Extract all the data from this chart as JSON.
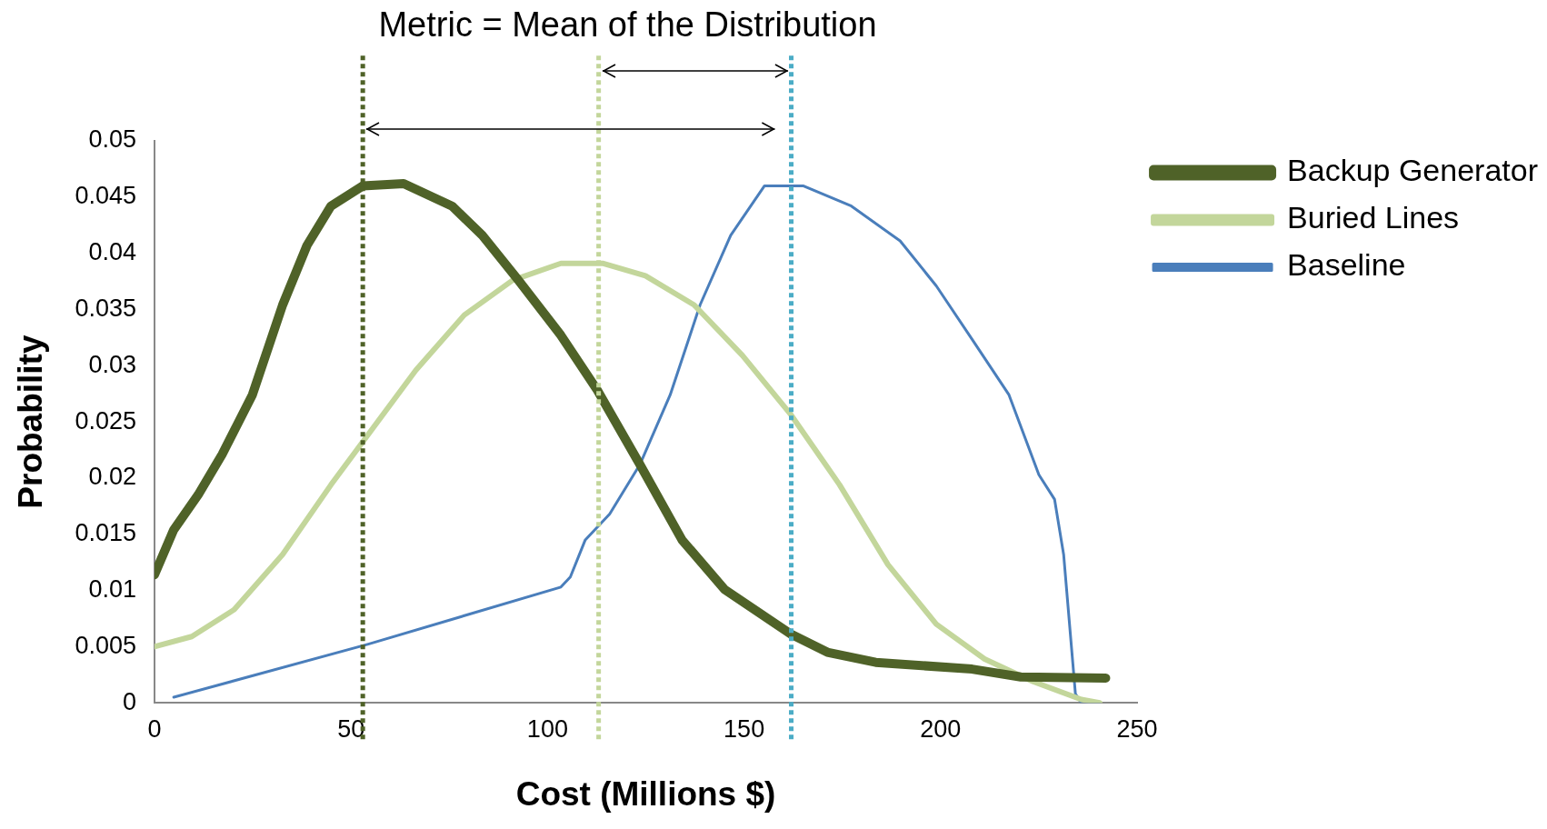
{
  "chart_data": {
    "type": "line",
    "title": "Metric = Mean of the Distribution",
    "xlabel": "Cost (Millions $)",
    "ylabel": "Probability",
    "series": [
      {
        "name": "Backup Generator",
        "color": "#4f6228",
        "x": [
          0,
          4.9,
          11.1,
          17.2,
          24.9,
          32.6,
          38.8,
          44.9,
          53,
          63.4,
          75.7,
          83.4,
          92.6,
          103.4,
          112.7,
          123.5,
          134.2,
          145,
          162,
          171.2,
          183.5,
          208,
          220.4,
          242
        ],
        "values": [
          0.0114,
          0.0154,
          0.0185,
          0.0221,
          0.0274,
          0.0354,
          0.0407,
          0.0442,
          0.046,
          0.0462,
          0.0442,
          0.0416,
          0.0376,
          0.0327,
          0.0278,
          0.0212,
          0.0145,
          0.0101,
          0.0061,
          0.0045,
          0.0036,
          0.003,
          0.0023,
          0.0022
        ]
      },
      {
        "name": "Buried Lines",
        "color": "#c3d69b",
        "x": [
          0,
          9.5,
          20.3,
          32.6,
          44.9,
          54.2,
          66.5,
          78.8,
          91.1,
          103.4,
          114.2,
          124.9,
          137.3,
          149.6,
          162,
          174.3,
          186.6,
          198.9,
          211.2,
          223.5,
          235.8,
          240.5
        ],
        "values": [
          0.005,
          0.0059,
          0.0083,
          0.0132,
          0.0194,
          0.0238,
          0.0296,
          0.0345,
          0.0376,
          0.0391,
          0.0391,
          0.038,
          0.0354,
          0.0309,
          0.0256,
          0.0194,
          0.0123,
          0.007,
          0.0039,
          0.0019,
          0.0003,
          0
        ]
      },
      {
        "name": "Baseline",
        "color": "#4a7ebb",
        "x": [
          4.9,
          54.2,
          103.4,
          105.8,
          109.6,
          115.8,
          123.5,
          131.2,
          138.8,
          146.6,
          155.2,
          165,
          177.3,
          189.7,
          198.9,
          208.1,
          217.4,
          225,
          229,
          231.3,
          234.3,
          235.8,
          240.5
        ],
        "values": [
          0.0005,
          0.0052,
          0.0103,
          0.0112,
          0.0145,
          0.0168,
          0.0212,
          0.0274,
          0.0354,
          0.0416,
          0.046,
          0.046,
          0.0442,
          0.0411,
          0.0371,
          0.0323,
          0.0274,
          0.0203,
          0.0181,
          0.0132,
          0.0008,
          0,
          0
        ]
      }
    ],
    "ref_lines": [
      {
        "axis": "x",
        "value": 53,
        "color": "#4f6228",
        "line_style": "dotted"
      },
      {
        "axis": "x",
        "value": 113,
        "color": "#c3d69b",
        "line_style": "dotted"
      },
      {
        "axis": "x",
        "value": 162,
        "color": "#4bacc6",
        "line_style": "dotted"
      }
    ],
    "xlim": [
      0,
      250
    ],
    "xticks": [
      0,
      50,
      100,
      150,
      200,
      250
    ],
    "ylim": [
      0,
      0.05
    ],
    "yticks": [
      0,
      0.005,
      0.01,
      0.015,
      0.02,
      0.025,
      0.03,
      0.035,
      0.04,
      0.045,
      0.05
    ],
    "grid": false,
    "legend": "top right",
    "marker": "none",
    "line_style": "solid"
  }
}
